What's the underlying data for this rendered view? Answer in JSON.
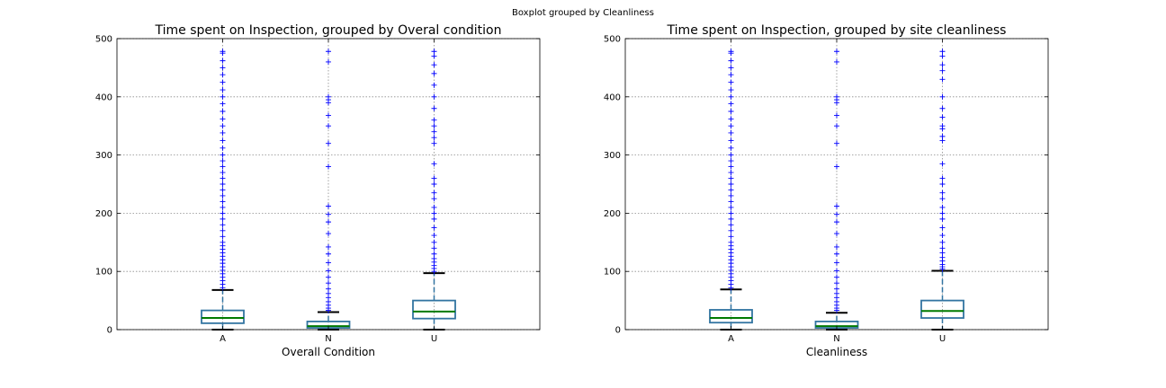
{
  "suptitle": "Boxplot grouped by Cleanliness",
  "colors": {
    "box": "#3274a1",
    "median": "#007a00",
    "whisker": "#3274a1",
    "cap": "#000000",
    "flier": "#0000ff",
    "grid": "#8c8c8c"
  },
  "chart_data": [
    {
      "type": "box",
      "title": "Time spent on Inspection, grouped by Overal condition",
      "xlabel": "Overall Condition",
      "ylabel": "",
      "ylim": [
        0,
        500
      ],
      "yticks": [
        0,
        100,
        200,
        300,
        400,
        500
      ],
      "grid": true,
      "categories": [
        "A",
        "N",
        "U"
      ],
      "boxes": [
        {
          "name": "A",
          "whisker_low": 0,
          "q1": 11,
          "median": 20,
          "q3": 33,
          "whisker_high": 68,
          "fliers": [
            72,
            78,
            84,
            90,
            96,
            102,
            108,
            114,
            120,
            126,
            132,
            138,
            144,
            150,
            160,
            170,
            180,
            190,
            200,
            210,
            220,
            230,
            240,
            250,
            260,
            270,
            280,
            290,
            300,
            312,
            325,
            338,
            350,
            362,
            375,
            388,
            400,
            412,
            425,
            438,
            450,
            462,
            475,
            478
          ]
        },
        {
          "name": "N",
          "whisker_low": 0,
          "q1": 3,
          "median": 6,
          "q3": 14,
          "whisker_high": 30,
          "fliers": [
            33,
            37,
            42,
            48,
            55,
            62,
            70,
            80,
            90,
            101,
            115,
            130,
            142,
            165,
            185,
            198,
            212,
            280,
            320,
            350,
            368,
            390,
            395,
            400,
            460,
            478
          ]
        },
        {
          "name": "U",
          "whisker_low": 0,
          "q1": 19,
          "median": 31,
          "q3": 50,
          "whisker_high": 97,
          "fliers": [
            100,
            105,
            110,
            116,
            122,
            130,
            140,
            150,
            162,
            175,
            190,
            200,
            210,
            225,
            235,
            250,
            260,
            285,
            320,
            330,
            340,
            350,
            360,
            380,
            400,
            420,
            440,
            455,
            470,
            478
          ]
        }
      ]
    },
    {
      "type": "box",
      "title": "Time spent on Inspection, grouped by site cleanliness",
      "xlabel": "Cleanliness",
      "ylabel": "",
      "ylim": [
        0,
        500
      ],
      "yticks": [
        0,
        100,
        200,
        300,
        400,
        500
      ],
      "grid": true,
      "categories": [
        "A",
        "N",
        "U"
      ],
      "boxes": [
        {
          "name": "A",
          "whisker_low": 0,
          "q1": 12,
          "median": 20,
          "q3": 34,
          "whisker_high": 69,
          "fliers": [
            72,
            78,
            84,
            90,
            96,
            102,
            108,
            114,
            120,
            126,
            132,
            138,
            144,
            150,
            160,
            170,
            180,
            190,
            200,
            210,
            220,
            230,
            240,
            250,
            260,
            270,
            280,
            290,
            300,
            312,
            325,
            338,
            350,
            362,
            375,
            388,
            400,
            412,
            425,
            438,
            450,
            462,
            475,
            478
          ]
        },
        {
          "name": "N",
          "whisker_low": 0,
          "q1": 3,
          "median": 6,
          "q3": 14,
          "whisker_high": 29,
          "fliers": [
            33,
            37,
            42,
            48,
            55,
            62,
            70,
            80,
            90,
            101,
            115,
            130,
            142,
            165,
            185,
            198,
            212,
            280,
            320,
            350,
            368,
            390,
            395,
            400,
            460,
            478
          ]
        },
        {
          "name": "U",
          "whisker_low": 0,
          "q1": 20,
          "median": 32,
          "q3": 50,
          "whisker_high": 101,
          "fliers": [
            104,
            108,
            112,
            118,
            124,
            132,
            140,
            150,
            162,
            175,
            190,
            200,
            210,
            225,
            235,
            250,
            260,
            285,
            325,
            332,
            345,
            350,
            365,
            380,
            400,
            430,
            445,
            455,
            470,
            478
          ]
        }
      ]
    }
  ]
}
